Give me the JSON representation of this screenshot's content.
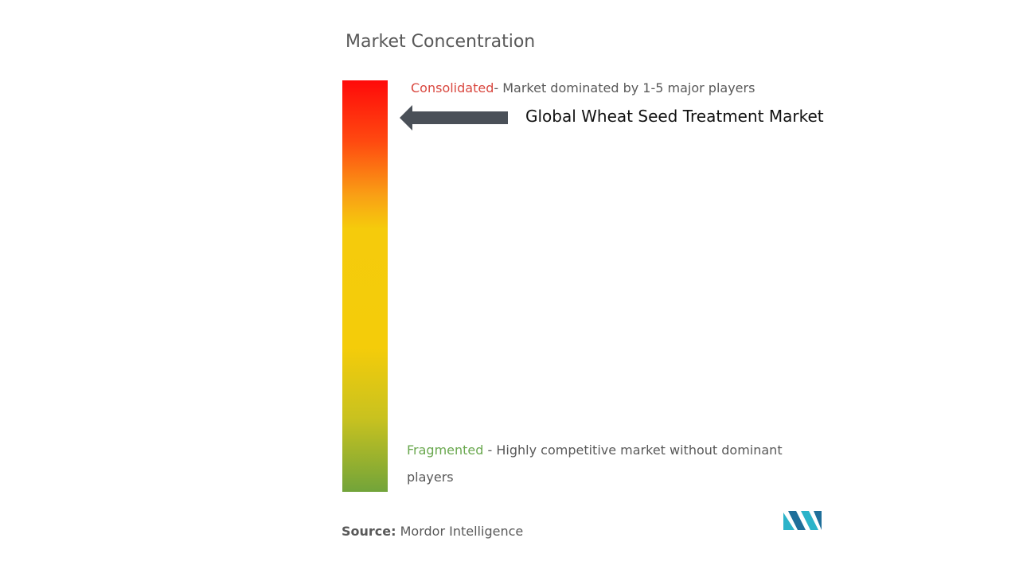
{
  "title": "Market Concentration",
  "consolidated": {
    "label": "Consolidated",
    "description": "- Market dominated by 1-5 major players"
  },
  "market": "Global Wheat Seed Treatment Market",
  "fragmented": {
    "label": "Fragmented",
    "description": "- Highly competitive market without dominant players"
  },
  "source": {
    "label": "Source:",
    "text": "Mordor Intelligence"
  }
}
